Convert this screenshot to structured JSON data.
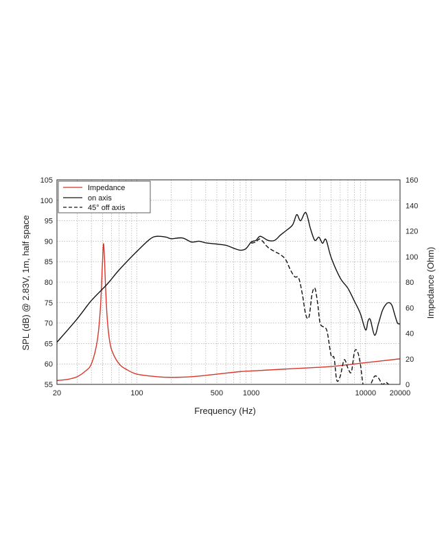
{
  "chart_data": {
    "type": "line",
    "xlabel": "Frequency (Hz)",
    "ylabel": "SPL (dB) @ 2.83V, 1m, half space",
    "y2label": "Impedance (Ohm)",
    "x_scale": "log",
    "xlim": [
      20,
      20000
    ],
    "ylim": [
      55,
      105
    ],
    "y2lim": [
      0,
      160
    ],
    "grid": true,
    "legend_position": "top-left",
    "x_ticks": [
      20,
      100,
      500,
      1000,
      10000,
      20000
    ],
    "x_tick_labels": [
      "20",
      "100",
      "500",
      "1000",
      "10000",
      "20000"
    ],
    "y_ticks": [
      55,
      60,
      65,
      70,
      75,
      80,
      85,
      90,
      95,
      100,
      105
    ],
    "y_tick_labels": [
      "55",
      "60",
      "65",
      "70",
      "75",
      "80",
      "85",
      "90",
      "95",
      "100",
      "105"
    ],
    "y2_ticks": [
      0,
      20,
      40,
      60,
      80,
      100,
      120,
      140,
      160
    ],
    "y2_tick_labels": [
      "0",
      "20",
      "40",
      "60",
      "80",
      "100",
      "120",
      "140",
      "160"
    ],
    "series": [
      {
        "name": "Impedance",
        "axis": "right",
        "color": "#d6362a",
        "style": "solid",
        "points": [
          [
            20,
            3
          ],
          [
            25,
            4
          ],
          [
            30,
            6
          ],
          [
            35,
            10
          ],
          [
            40,
            16
          ],
          [
            45,
            34
          ],
          [
            48,
            60
          ],
          [
            50,
            95
          ],
          [
            51,
            110
          ],
          [
            52,
            100
          ],
          [
            53,
            80
          ],
          [
            55,
            52
          ],
          [
            58,
            33
          ],
          [
            62,
            24
          ],
          [
            70,
            16
          ],
          [
            80,
            12
          ],
          [
            100,
            8
          ],
          [
            150,
            6
          ],
          [
            200,
            5.5
          ],
          [
            300,
            6
          ],
          [
            500,
            8
          ],
          [
            800,
            10
          ],
          [
            1000,
            10.5
          ],
          [
            2000,
            12
          ],
          [
            5000,
            14
          ],
          [
            10000,
            17
          ],
          [
            20000,
            20
          ]
        ]
      },
      {
        "name": "on axis",
        "axis": "left",
        "color": "#111111",
        "style": "solid",
        "points": [
          [
            20,
            65.3
          ],
          [
            30,
            71
          ],
          [
            40,
            75.5
          ],
          [
            55,
            79.5
          ],
          [
            70,
            83
          ],
          [
            100,
            87.5
          ],
          [
            130,
            90.5
          ],
          [
            150,
            91.2
          ],
          [
            180,
            91
          ],
          [
            200,
            90.6
          ],
          [
            250,
            90.8
          ],
          [
            300,
            89.8
          ],
          [
            350,
            90
          ],
          [
            400,
            89.6
          ],
          [
            500,
            89.3
          ],
          [
            600,
            89
          ],
          [
            700,
            88.3
          ],
          [
            800,
            87.8
          ],
          [
            900,
            88.2
          ],
          [
            1000,
            89.8
          ],
          [
            1100,
            90.2
          ],
          [
            1200,
            91.2
          ],
          [
            1400,
            90.2
          ],
          [
            1600,
            90.2
          ],
          [
            1800,
            91.5
          ],
          [
            2000,
            92.5
          ],
          [
            2300,
            94
          ],
          [
            2500,
            96.5
          ],
          [
            2700,
            95
          ],
          [
            3000,
            97
          ],
          [
            3300,
            93
          ],
          [
            3600,
            90.2
          ],
          [
            3900,
            91
          ],
          [
            4200,
            89.5
          ],
          [
            4500,
            90.4
          ],
          [
            5000,
            86
          ],
          [
            6000,
            81
          ],
          [
            7000,
            78.5
          ],
          [
            8000,
            75.3
          ],
          [
            9000,
            72.3
          ],
          [
            10000,
            68.3
          ],
          [
            10500,
            70.5
          ],
          [
            11000,
            70.8
          ],
          [
            12000,
            67
          ],
          [
            13000,
            70
          ],
          [
            14000,
            73
          ],
          [
            15000,
            74.5
          ],
          [
            16000,
            75
          ],
          [
            17000,
            74.3
          ],
          [
            18000,
            72
          ],
          [
            19000,
            70
          ],
          [
            20000,
            69.8
          ]
        ]
      },
      {
        "name": "45° off axis",
        "axis": "left",
        "color": "#111111",
        "style": "dashed",
        "points": [
          [
            1000,
            89.5
          ],
          [
            1100,
            89.8
          ],
          [
            1200,
            90.5
          ],
          [
            1400,
            88.5
          ],
          [
            1600,
            87.5
          ],
          [
            1800,
            86.7
          ],
          [
            2000,
            85.5
          ],
          [
            2200,
            83
          ],
          [
            2400,
            81.3
          ],
          [
            2600,
            81
          ],
          [
            2800,
            77
          ],
          [
            3000,
            72
          ],
          [
            3200,
            71.5
          ],
          [
            3400,
            77
          ],
          [
            3600,
            78.5
          ],
          [
            3800,
            75
          ],
          [
            4000,
            70
          ],
          [
            4300,
            69
          ],
          [
            4600,
            68
          ],
          [
            5000,
            62
          ],
          [
            5300,
            61.5
          ],
          [
            5600,
            56
          ],
          [
            6000,
            57
          ],
          [
            6500,
            61
          ],
          [
            7000,
            59
          ],
          [
            7500,
            58
          ],
          [
            8000,
            63
          ],
          [
            8500,
            63
          ],
          [
            9000,
            60
          ],
          [
            9500,
            55
          ],
          [
            10000,
            55
          ],
          [
            11000,
            55
          ],
          [
            12000,
            57
          ],
          [
            13000,
            56.5
          ],
          [
            14000,
            55
          ],
          [
            15000,
            55.5
          ],
          [
            16000,
            55
          ],
          [
            17000,
            55
          ]
        ]
      }
    ]
  }
}
